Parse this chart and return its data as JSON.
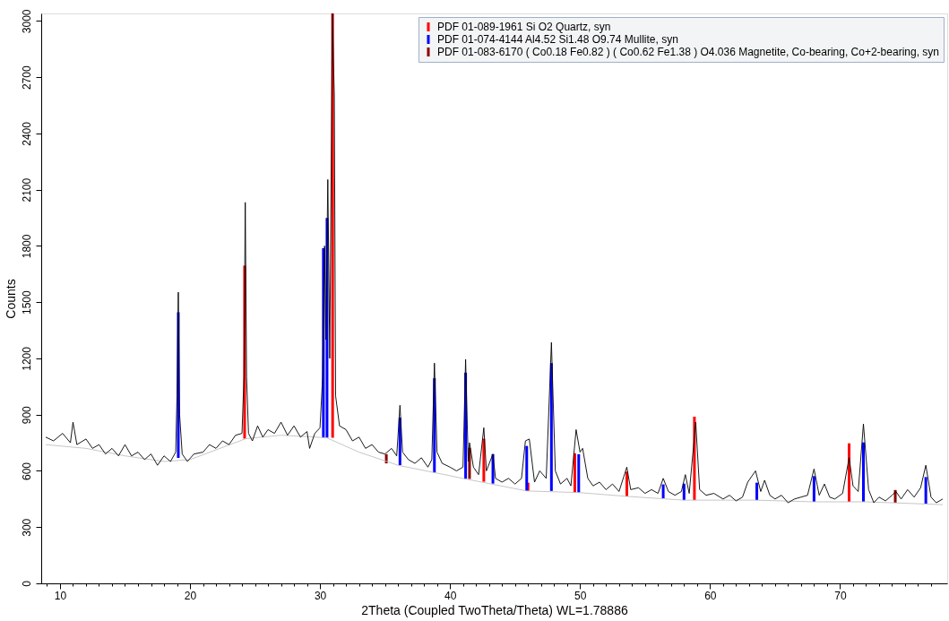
{
  "chart_data": {
    "type": "line",
    "xlabel": "2Theta (Coupled TwoTheta/Theta) WL=1.78886",
    "ylabel": "Counts",
    "xlim": [
      8.9,
      77.9
    ],
    "ylim": [
      0,
      3040
    ],
    "xticks": [
      {
        "value": 9,
        "label": null
      },
      10,
      {
        "value": 11,
        "label": null
      },
      {
        "value": 12,
        "label": null
      },
      {
        "value": 13,
        "label": null
      },
      {
        "value": 14,
        "label": null
      },
      {
        "value": 15,
        "label": null
      },
      {
        "value": 16,
        "label": null
      },
      {
        "value": 17,
        "label": null
      },
      {
        "value": 18,
        "label": null
      },
      {
        "value": 19,
        "label": null
      },
      20,
      {
        "value": 21,
        "label": null
      },
      {
        "value": 22,
        "label": null
      },
      {
        "value": 23,
        "label": null
      },
      {
        "value": 24,
        "label": null
      },
      {
        "value": 25,
        "label": null
      },
      {
        "value": 26,
        "label": null
      },
      {
        "value": 27,
        "label": null
      },
      {
        "value": 28,
        "label": null
      },
      {
        "value": 29,
        "label": null
      },
      30,
      {
        "value": 31,
        "label": null
      },
      {
        "value": 32,
        "label": null
      },
      {
        "value": 33,
        "label": null
      },
      {
        "value": 34,
        "label": null
      },
      {
        "value": 35,
        "label": null
      },
      {
        "value": 36,
        "label": null
      },
      {
        "value": 37,
        "label": null
      },
      {
        "value": 38,
        "label": null
      },
      {
        "value": 39,
        "label": null
      },
      40,
      {
        "value": 41,
        "label": null
      },
      {
        "value": 42,
        "label": null
      },
      {
        "value": 43,
        "label": null
      },
      {
        "value": 44,
        "label": null
      },
      {
        "value": 45,
        "label": null
      },
      {
        "value": 46,
        "label": null
      },
      {
        "value": 47,
        "label": null
      },
      {
        "value": 48,
        "label": null
      },
      {
        "value": 49,
        "label": null
      },
      50,
      {
        "value": 51,
        "label": null
      },
      {
        "value": 52,
        "label": null
      },
      {
        "value": 53,
        "label": null
      },
      {
        "value": 54,
        "label": null
      },
      {
        "value": 55,
        "label": null
      },
      {
        "value": 56,
        "label": null
      },
      {
        "value": 57,
        "label": null
      },
      {
        "value": 58,
        "label": null
      },
      {
        "value": 59,
        "label": null
      },
      60,
      {
        "value": 61,
        "label": null
      },
      {
        "value": 62,
        "label": null
      },
      {
        "value": 63,
        "label": null
      },
      {
        "value": 64,
        "label": null
      },
      {
        "value": 65,
        "label": null
      },
      {
        "value": 66,
        "label": null
      },
      {
        "value": 67,
        "label": null
      },
      {
        "value": 68,
        "label": null
      },
      {
        "value": 69,
        "label": null
      },
      70,
      {
        "value": 71,
        "label": null
      },
      {
        "value": 72,
        "label": null
      },
      {
        "value": 73,
        "label": null
      },
      {
        "value": 74,
        "label": null
      },
      {
        "value": 75,
        "label": null
      },
      {
        "value": 76,
        "label": null
      },
      {
        "value": 77,
        "label": null
      }
    ],
    "yticks": [
      0,
      300,
      600,
      900,
      1200,
      1500,
      1800,
      2100,
      2400,
      2700,
      3000
    ],
    "legend": "top right",
    "series": [
      {
        "color": "#000000",
        "x": [
          8.9,
          9.5,
          10.2,
          10.8,
          11.0,
          11.3,
          12,
          12.5,
          13,
          13.5,
          14,
          14.5,
          15,
          15.5,
          16,
          16.5,
          17,
          17.5,
          18,
          18.5,
          18.9,
          19.0,
          19.1,
          19.2,
          19.4,
          19.8,
          20.3,
          21,
          21.5,
          22,
          22.5,
          23,
          23.5,
          24.0,
          24.15,
          24.25,
          24.35,
          24.5,
          24.8,
          25.2,
          25.6,
          26,
          26.5,
          27,
          27.5,
          28,
          28.5,
          29,
          29.2,
          29.6,
          30.0,
          30.2,
          30.35,
          30.45,
          30.6,
          30.75,
          30.95,
          31.1,
          31.2,
          31.5,
          32,
          32.5,
          33,
          33.5,
          34,
          34.5,
          35,
          35.5,
          35.9,
          36.15,
          36.35,
          36.8,
          37.3,
          37.8,
          38.3,
          38.6,
          38.8,
          39.0,
          39.4,
          40,
          40.5,
          41.0,
          41.2,
          41.4,
          41.5,
          41.8,
          42.2,
          42.6,
          42.8,
          43.3,
          43.5,
          44,
          44.5,
          45,
          45.5,
          45.8,
          46.1,
          46.5,
          46.9,
          47.4,
          47.8,
          48.1,
          48.5,
          49,
          49.3,
          49.7,
          50.0,
          50.2,
          50.6,
          51,
          51.5,
          52,
          52.5,
          53,
          53.6,
          53.9,
          54.5,
          55,
          55.5,
          56,
          56.4,
          56.8,
          57.3,
          57.8,
          58.1,
          58.4,
          58.9,
          59.2,
          59.7,
          60.3,
          61,
          61.5,
          62,
          62.5,
          62.9,
          63.5,
          63.9,
          64.2,
          64.6,
          65,
          65.5,
          66,
          66.5,
          67,
          67.5,
          68.0,
          68.4,
          68.8,
          69.2,
          69.6,
          70.2,
          70.7,
          71,
          71.4,
          71.8,
          72.2,
          72.6,
          73,
          73.5,
          74,
          74.3,
          74.7,
          75.2,
          75.7,
          76.2,
          76.6,
          77,
          77.4,
          77.9
        ],
        "values": [
          780,
          760,
          800,
          750,
          860,
          740,
          770,
          720,
          740,
          690,
          720,
          680,
          740,
          680,
          700,
          660,
          690,
          630,
          680,
          650,
          700,
          1000,
          1553,
          900,
          690,
          650,
          690,
          700,
          740,
          720,
          760,
          740,
          790,
          800,
          1100,
          2032,
          1100,
          800,
          760,
          840,
          780,
          820,
          800,
          860,
          790,
          840,
          780,
          810,
          720,
          800,
          830,
          1100,
          1800,
          1300,
          2154,
          1200,
          3040,
          2600,
          1000,
          840,
          820,
          760,
          780,
          720,
          740,
          700,
          690,
          720,
          680,
          950,
          700,
          660,
          640,
          670,
          620,
          660,
          1175,
          700,
          640,
          620,
          600,
          620,
          1195,
          650,
          750,
          620,
          580,
          830,
          600,
          690,
          560,
          540,
          560,
          530,
          560,
          760,
          770,
          540,
          600,
          560,
          1285,
          600,
          530,
          560,
          520,
          820,
          700,
          720,
          560,
          520,
          540,
          500,
          530,
          490,
          620,
          500,
          510,
          480,
          500,
          480,
          560,
          490,
          470,
          490,
          580,
          480,
          860,
          500,
          470,
          480,
          450,
          470,
          440,
          460,
          540,
          600,
          490,
          550,
          470,
          450,
          470,
          430,
          450,
          460,
          470,
          610,
          470,
          530,
          460,
          450,
          480,
          670,
          520,
          490,
          850,
          500,
          430,
          460,
          440,
          470,
          490,
          450,
          500,
          460,
          510,
          630,
          460,
          430,
          450
        ]
      },
      {
        "type": "line",
        "color": "#c0c0c0",
        "x": [
          8.9,
          12,
          15,
          18,
          20,
          24.3,
          27,
          30.5,
          33,
          36,
          38.8,
          41.2,
          45.9,
          50,
          53.6,
          58,
          63.5,
          68,
          72,
          77.9
        ],
        "values": [
          740,
          720,
          680,
          650,
          660,
          772,
          790,
          777,
          700,
          630,
          591,
          557,
          493,
          484,
          464,
          444,
          444,
          435,
          435,
          420
        ]
      },
      {
        "type": "bar",
        "name": "PDF 01-089-1961 Si O2 Quartz, syn",
        "color": "#ff0000",
        "x": [
          24.2,
          30.97,
          42.6,
          46.0,
          49.6,
          53.6,
          58.8,
          70.7
        ],
        "base": [
          772,
          777,
          542,
          493,
          484,
          464,
          444,
          435
        ],
        "values": [
          923,
          2263,
          230,
          44,
          210,
          132,
          445,
          312
        ]
      },
      {
        "type": "bar",
        "name": "PDF 01-074-4144 Al4.52 Si1.48 O9.74 Mullite, syn",
        "color": "#0000ff",
        "x": [
          19.1,
          30.26,
          30.54,
          36.15,
          38.8,
          41.2,
          43.3,
          45.9,
          47.8,
          49.9,
          56.4,
          58.0,
          63.6,
          68.0,
          71.8,
          76.6
        ],
        "base": [
          669,
          777,
          777,
          630,
          591,
          557,
          532,
          493,
          493,
          484,
          454,
          444,
          444,
          435,
          435,
          425
        ],
        "values": [
          777,
          1011,
          1172,
          254,
          503,
          567,
          157,
          240,
          682,
          205,
          74,
          88,
          93,
          137,
          317,
          142
        ]
      },
      {
        "type": "bar",
        "name": "PDF 01-083-6170 ( Co0.18 Fe0.82 ) ( Co0.62 Fe1.38 ) O4.036 Magnetite, Co-bearing, Co+2-bearing, syn",
        "color": "#8b0000",
        "x": [
          35.1,
          41.5,
          74.25
        ],
        "base": [
          640,
          557,
          430
        ],
        "values": [
          49,
          166,
          68
        ]
      }
    ]
  }
}
